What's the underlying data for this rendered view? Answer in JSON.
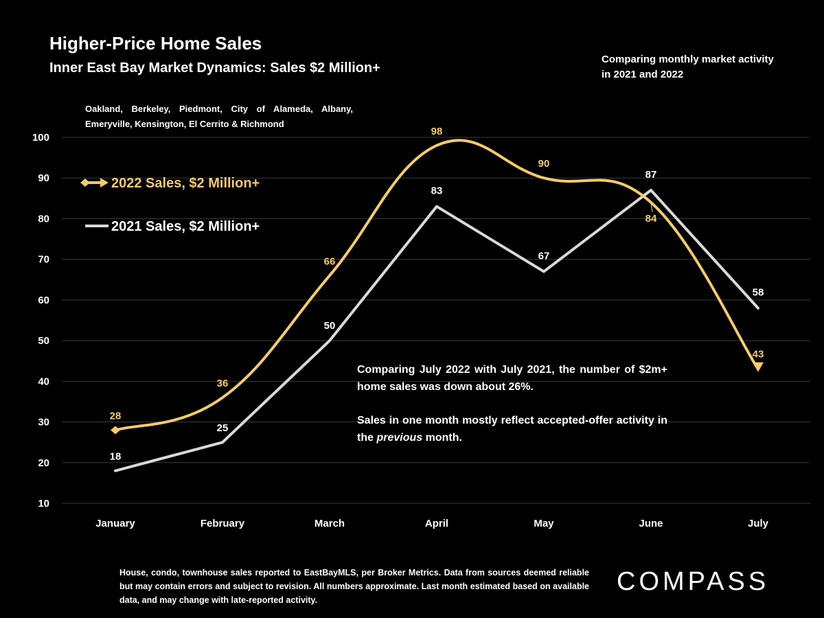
{
  "header": {
    "title": "Higher-Price Home Sales",
    "subtitle": "Inner East Bay Market Dynamics: Sales $2 Million+",
    "note": "Comparing monthly market activity in 2021 and 2022",
    "region": "Oakland, Berkeley, Piedmont, City of Alameda, Albany, Emeryville, Kensington, El Cerrito & Richmond"
  },
  "commentary": {
    "p1": "Comparing July 2022 with July 2021, the number of $2m+ home sales was down about 26%.",
    "p2_before": "Sales in one month mostly reflect accepted-offer activity in the ",
    "p2_em": "previous",
    "p2_after": " month."
  },
  "footer": "House, condo, townhouse sales reported to EastBayMLS, per Broker Metrics. Data from sources deemed reliable but may contain errors and subject to revision. All numbers approximate. Last month estimated based on available data, and may change with late-reported activity.",
  "logo": "COMPASS",
  "chart_data": {
    "type": "line",
    "categories": [
      "January",
      "February",
      "March",
      "April",
      "May",
      "June",
      "July"
    ],
    "series": [
      {
        "name": "2022 Sales, $2 Million+",
        "values": [
          28,
          36,
          66,
          98,
          90,
          84,
          43
        ],
        "color": "#f5cc66",
        "smooth": true
      },
      {
        "name": "2021 Sales, $2 Million+",
        "values": [
          18,
          25,
          50,
          83,
          67,
          87,
          58
        ],
        "color": "#d9d9d9",
        "smooth": false
      }
    ],
    "ylim": [
      10,
      100
    ],
    "yticks": [
      10,
      20,
      30,
      40,
      50,
      60,
      70,
      80,
      90,
      100
    ],
    "grid": true,
    "legend_position": "left"
  }
}
